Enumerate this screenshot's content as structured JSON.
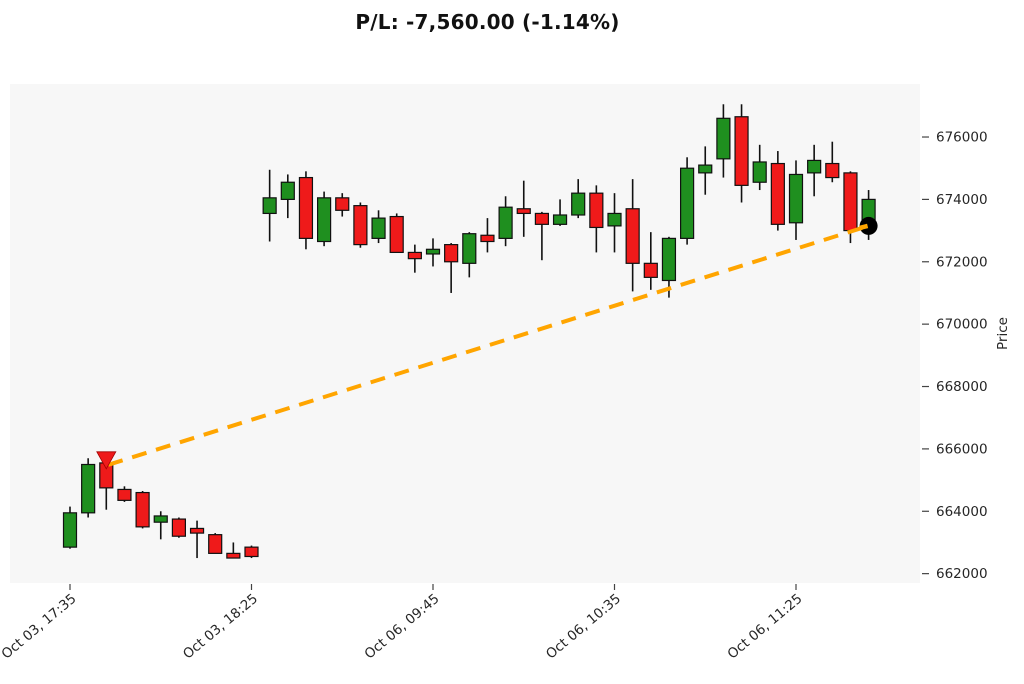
{
  "title": "P/L: -7,560.00 (-1.14%)",
  "chart_data": {
    "type": "candlestick",
    "title": "P/L: -7,560.00 (-1.14%)",
    "xlabel": "",
    "ylabel": "Price",
    "ylim": [
      661700,
      677700
    ],
    "grid": false,
    "y_ticks": [
      662000,
      664000,
      666000,
      668000,
      670000,
      672000,
      674000,
      676000
    ],
    "x_ticks": [
      {
        "bar": 0,
        "label": "Oct 03, 17:35"
      },
      {
        "bar": 10,
        "label": "Oct 03, 18:25"
      },
      {
        "bar": 20,
        "label": "Oct 06, 09:45"
      },
      {
        "bar": 30,
        "label": "Oct 06, 10:35"
      },
      {
        "bar": 40,
        "label": "Oct 06, 11:25"
      }
    ],
    "colors": {
      "up": "#1f8f1f",
      "down": "#ef1a1a",
      "edge": "#111111",
      "plot_bg": "#f7f7f7",
      "trade_line": "#ffa500",
      "entry_marker": "#ef1a1a",
      "current_marker": "#000000",
      "tick_text": "#262626"
    },
    "candles": [
      [
        662850,
        664150,
        662800,
        663950
      ],
      [
        663950,
        665700,
        663800,
        665500
      ],
      [
        665550,
        665600,
        664050,
        664750
      ],
      [
        664700,
        664800,
        664300,
        664350
      ],
      [
        664600,
        664650,
        663450,
        663500
      ],
      [
        663650,
        664000,
        663100,
        663850
      ],
      [
        663750,
        663800,
        663150,
        663200
      ],
      [
        663450,
        663700,
        662500,
        663300
      ],
      [
        663250,
        663300,
        662650,
        662650
      ],
      [
        662650,
        663000,
        662500,
        662500
      ],
      [
        662850,
        662900,
        662500,
        662550
      ],
      [
        673550,
        674950,
        672650,
        674050
      ],
      [
        674000,
        674800,
        673400,
        674550
      ],
      [
        674700,
        674900,
        672400,
        672750
      ],
      [
        672650,
        674250,
        672500,
        674050
      ],
      [
        674050,
        674200,
        673450,
        673650
      ],
      [
        673800,
        673900,
        672450,
        672550
      ],
      [
        672750,
        673650,
        672600,
        673400
      ],
      [
        673450,
        673550,
        672300,
        672300
      ],
      [
        672300,
        672550,
        671650,
        672100
      ],
      [
        672250,
        672750,
        671850,
        672400
      ],
      [
        672550,
        672600,
        671000,
        672000
      ],
      [
        671950,
        672950,
        671500,
        672900
      ],
      [
        672850,
        673400,
        672300,
        672650
      ],
      [
        672750,
        674100,
        672500,
        673750
      ],
      [
        673700,
        674600,
        672800,
        673550
      ],
      [
        673550,
        673600,
        672050,
        673200
      ],
      [
        673200,
        674000,
        673150,
        673500
      ],
      [
        673500,
        674650,
        673400,
        674200
      ],
      [
        674200,
        674450,
        672300,
        673100
      ],
      [
        673150,
        674200,
        672300,
        673550
      ],
      [
        673700,
        674650,
        671050,
        671950
      ],
      [
        671950,
        672950,
        671100,
        671500
      ],
      [
        671400,
        672800,
        670850,
        672750
      ],
      [
        672750,
        675350,
        672550,
        675000
      ],
      [
        674850,
        675700,
        674150,
        675100
      ],
      [
        675300,
        677050,
        674700,
        676600
      ],
      [
        676650,
        677050,
        673900,
        674450
      ],
      [
        674550,
        675750,
        674300,
        675200
      ],
      [
        675150,
        675550,
        673000,
        673200
      ],
      [
        673250,
        675250,
        672700,
        674800
      ],
      [
        674850,
        675750,
        674100,
        675250
      ],
      [
        675150,
        675850,
        674550,
        674700
      ],
      [
        674850,
        674900,
        672600,
        673000
      ],
      [
        673350,
        674300,
        672700,
        674000
      ]
    ],
    "trade": {
      "entry": {
        "bar": 2,
        "price": 665650,
        "marker": "triangle-down"
      },
      "current": {
        "bar": 44,
        "price": 673150,
        "marker": "circle"
      }
    }
  }
}
